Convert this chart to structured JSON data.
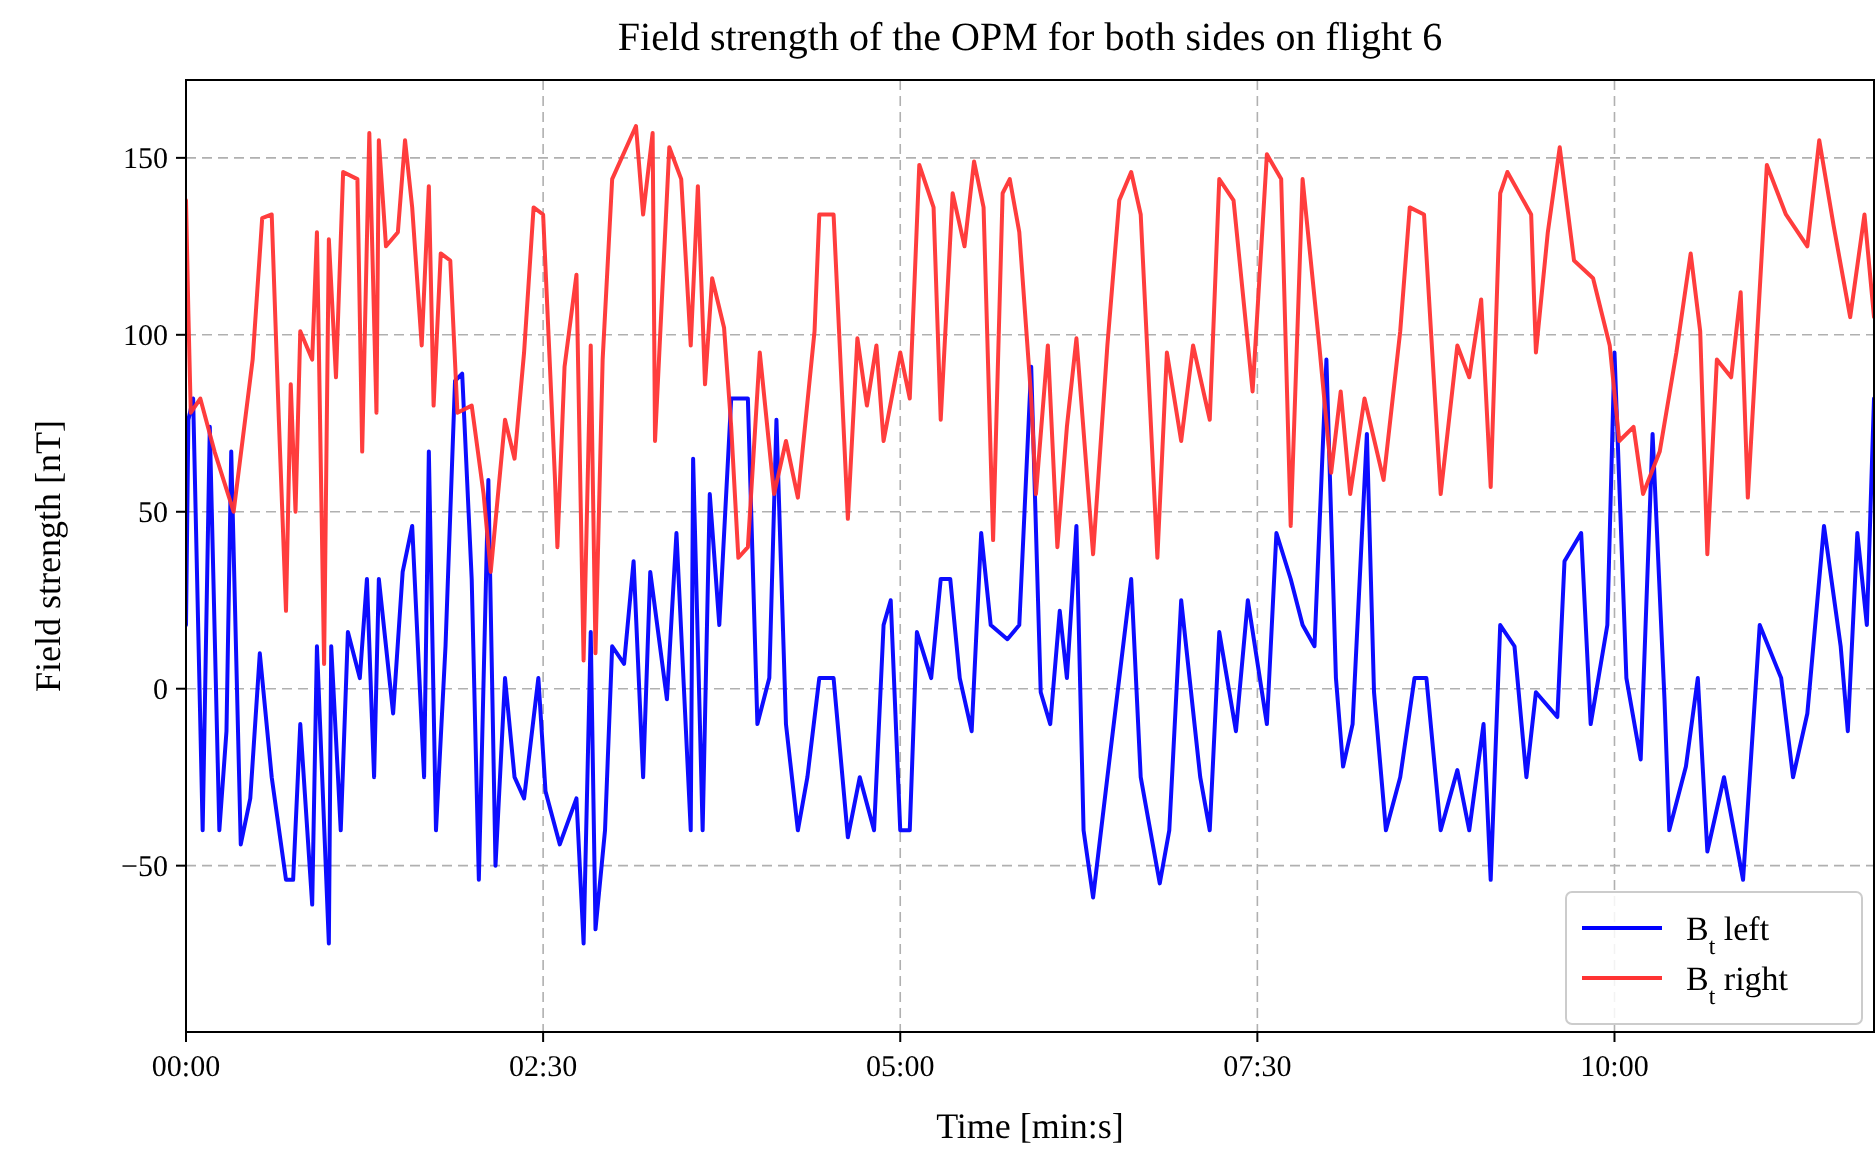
{
  "chart_data": {
    "type": "line",
    "title": "Field strength of the OPM for both sides on flight 6",
    "xlabel": "Time [min:s]",
    "ylabel": "Field strength [nT]",
    "xlim": [
      0,
      709
    ],
    "ylim": [
      -97,
      172
    ],
    "xticks": [
      {
        "value": 0,
        "label": "00:00"
      },
      {
        "value": 150,
        "label": "02:30"
      },
      {
        "value": 300,
        "label": "05:00"
      },
      {
        "value": 450,
        "label": "07:30"
      },
      {
        "value": 600,
        "label": "10:00"
      }
    ],
    "yticks": [
      {
        "value": -50,
        "label": "−50"
      },
      0,
      50,
      100,
      150
    ],
    "grid": true,
    "legend": "bottom right",
    "line_style": "solid",
    "marker": "none",
    "series": [
      {
        "name": "B$_{t}$ left",
        "color": "#0000ff",
        "x": [
          0,
          1,
          3,
          7,
          10,
          14,
          17,
          19,
          23,
          27,
          31,
          36,
          42,
          45,
          48,
          53,
          55,
          60,
          61,
          65,
          68,
          73,
          76,
          79,
          81,
          87,
          91,
          95,
          100,
          102,
          105,
          109,
          113,
          116,
          120,
          123,
          127,
          130,
          134,
          138,
          142,
          148,
          151,
          157,
          164,
          167,
          170,
          172,
          176,
          179,
          184,
          188,
          192,
          195,
          202,
          206,
          212,
          213,
          217,
          220,
          224,
          229,
          236,
          240,
          245,
          248,
          252,
          257,
          261,
          266,
          272,
          278,
          283,
          289,
          293,
          296,
          300,
          304,
          307,
          313,
          317,
          321,
          325,
          330,
          334,
          338,
          345,
          350,
          355,
          359,
          363,
          367,
          370,
          374,
          377,
          381,
          387,
          392,
          397,
          401,
          409,
          413,
          418,
          426,
          430,
          434,
          441,
          446,
          454,
          458,
          464,
          469,
          474,
          479,
          483,
          486,
          490,
          496,
          499,
          504,
          510,
          516,
          521,
          527,
          534,
          539,
          545,
          548,
          552,
          558,
          563,
          567,
          576,
          579,
          586,
          590,
          597,
          600,
          605,
          611,
          616,
          621,
          623,
          630,
          635,
          639,
          646,
          654,
          661,
          670,
          675,
          681,
          688,
          695,
          698,
          702,
          706,
          709
        ],
        "values": [
          18,
          76,
          82,
          -40,
          74,
          -40,
          -12,
          67,
          -44,
          -31,
          10,
          -25,
          -54,
          -54,
          -10,
          -61,
          12,
          -72,
          12,
          -40,
          16,
          3,
          31,
          -25,
          31,
          -7,
          33,
          46,
          -25,
          67,
          -40,
          12,
          87,
          89,
          31,
          -54,
          59,
          -50,
          3,
          -25,
          -31,
          3,
          -29,
          -44,
          -31,
          -72,
          16,
          -68,
          -40,
          12,
          7,
          36,
          -25,
          33,
          -3,
          44,
          -40,
          65,
          -40,
          55,
          18,
          82,
          82,
          -10,
          3,
          76,
          -10,
          -40,
          -25,
          3,
          3,
          -42,
          -25,
          -40,
          18,
          25,
          -40,
          -40,
          16,
          3,
          31,
          31,
          3,
          -12,
          44,
          18,
          14,
          18,
          91,
          -1,
          -10,
          22,
          3,
          46,
          -40,
          -59,
          -25,
          3,
          31,
          -25,
          -55,
          -40,
          25,
          -25,
          -40,
          16,
          -12,
          25,
          -10,
          44,
          31,
          18,
          12,
          93,
          3,
          -22,
          -10,
          72,
          -1,
          -40,
          -25,
          3,
          3,
          -40,
          -23,
          -40,
          -10,
          -54,
          18,
          12,
          -25,
          -1,
          -8,
          36,
          44,
          -10,
          18,
          95,
          3,
          -20,
          72,
          -3,
          -40,
          -22,
          3,
          -46,
          -25,
          -54,
          18,
          3,
          -25,
          -7,
          46,
          12,
          -12,
          44,
          18,
          82
        ]
      },
      {
        "name": "B$_{t}$ right",
        "color": "#ff3333",
        "x": [
          0,
          1,
          2,
          6,
          12,
          20,
          28,
          32,
          36,
          39,
          42,
          44,
          46,
          48,
          53,
          55,
          58,
          60,
          63,
          66,
          72,
          74,
          77,
          80,
          81,
          84,
          89,
          92,
          95,
          99,
          102,
          104,
          107,
          111,
          114,
          120,
          125,
          128,
          134,
          138,
          142,
          146,
          150,
          155,
          156,
          159,
          164,
          167,
          170,
          172,
          175,
          179,
          189,
          192,
          196,
          197,
          203,
          208,
          212,
          215,
          218,
          221,
          226,
          229,
          232,
          236,
          241,
          247,
          252,
          257,
          264,
          266,
          272,
          278,
          282,
          286,
          290,
          293,
          300,
          304,
          308,
          314,
          317,
          322,
          327,
          331,
          335,
          339,
          343,
          346,
          350,
          355,
          357,
          362,
          366,
          370,
          374,
          381,
          387,
          392,
          397,
          401,
          408,
          412,
          418,
          423,
          430,
          434,
          440,
          448,
          454,
          460,
          464,
          469,
          476,
          481,
          485,
          489,
          495,
          503,
          510,
          514,
          520,
          527,
          534,
          539,
          544,
          548,
          552,
          555,
          565,
          567,
          572,
          577,
          583,
          591,
          598,
          602,
          608,
          612,
          619,
          626,
          632,
          636,
          639,
          643,
          649,
          653,
          656,
          664,
          672,
          681,
          686,
          692,
          699,
          705,
          709
        ],
        "values": [
          138,
          106,
          78,
          82,
          67,
          50,
          93,
          133,
          134,
          76,
          22,
          86,
          50,
          101,
          93,
          129,
          7,
          127,
          88,
          146,
          144,
          67,
          157,
          78,
          155,
          125,
          129,
          155,
          136,
          97,
          142,
          80,
          123,
          121,
          78,
          80,
          55,
          33,
          76,
          65,
          95,
          136,
          134,
          59,
          40,
          91,
          117,
          8,
          97,
          10,
          93,
          144,
          159,
          134,
          157,
          70,
          153,
          144,
          97,
          142,
          86,
          116,
          102,
          74,
          37,
          40,
          95,
          55,
          70,
          54,
          101,
          134,
          134,
          48,
          99,
          80,
          97,
          70,
          95,
          82,
          148,
          136,
          76,
          140,
          125,
          149,
          136,
          42,
          140,
          144,
          129,
          82,
          55,
          97,
          40,
          74,
          99,
          38,
          97,
          138,
          146,
          134,
          37,
          95,
          70,
          97,
          76,
          144,
          138,
          84,
          151,
          144,
          46,
          144,
          97,
          61,
          84,
          55,
          82,
          59,
          101,
          136,
          134,
          55,
          97,
          88,
          110,
          57,
          140,
          146,
          134,
          95,
          129,
          153,
          121,
          116,
          97,
          70,
          74,
          55,
          67,
          95,
          123,
          101,
          38,
          93,
          88,
          112,
          54,
          148,
          134,
          125,
          155,
          131,
          105,
          134,
          105
        ]
      }
    ]
  }
}
